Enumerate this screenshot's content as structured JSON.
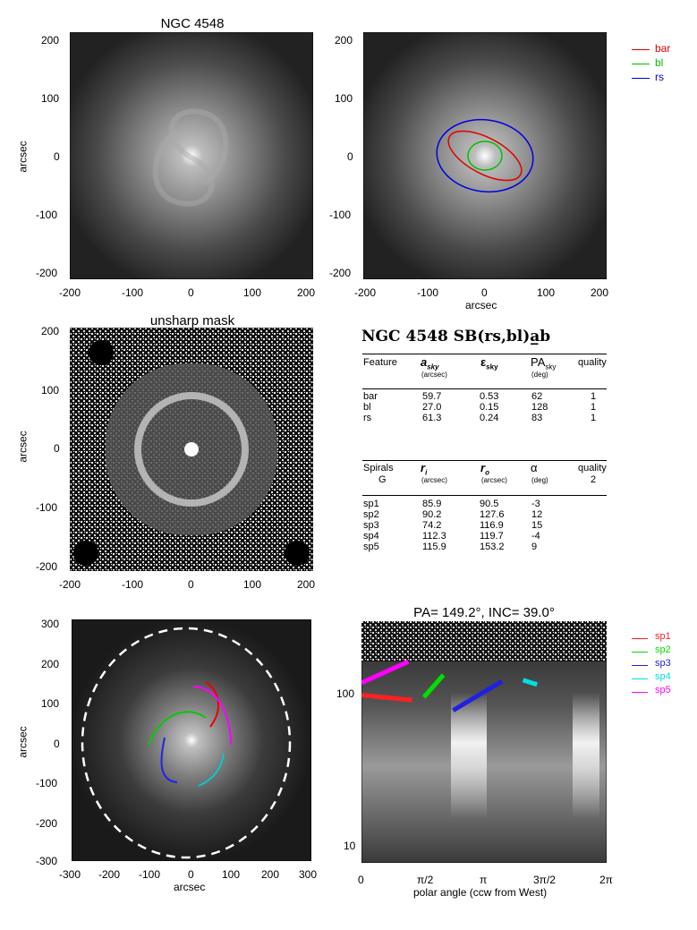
{
  "panels": {
    "p1": {
      "title": "NGC 4548",
      "ylabel": "arcsec",
      "xticks": [
        "-200",
        "-100",
        "0",
        "100",
        "200"
      ],
      "yticks": [
        "200",
        "100",
        "0",
        "-100",
        "-200"
      ]
    },
    "p2": {
      "xlabel": "arcsec",
      "xticks": [
        "-200",
        "-100",
        "0",
        "100",
        "200"
      ],
      "yticks": [
        "200",
        "100",
        "0",
        "-100",
        "-200"
      ],
      "legend": [
        {
          "name": "bar",
          "color": "#e00000"
        },
        {
          "name": "bl",
          "color": "#00c000"
        },
        {
          "name": "rs",
          "color": "#0000e0"
        }
      ]
    },
    "p3": {
      "title": "unsharp mask",
      "ylabel": "arcsec",
      "xticks": [
        "-200",
        "-100",
        "0",
        "100",
        "200"
      ],
      "yticks": [
        "200",
        "100",
        "0",
        "-100",
        "-200"
      ]
    },
    "p5": {
      "ylabel": "arcsec",
      "xlabel": "arcsec",
      "xticks": [
        "-300",
        "-200",
        "-100",
        "0",
        "100",
        "200",
        "300"
      ],
      "yticks": [
        "300",
        "200",
        "100",
        "0",
        "-100",
        "-200",
        "-300"
      ]
    },
    "p6": {
      "title": "PA= 149.2°, INC= 39.0°",
      "xlabel": "polar angle (ccw from West)",
      "xticks": [
        "0",
        "π/2",
        "π",
        "3π/2",
        "2π"
      ],
      "yticks": [
        "100",
        "10"
      ],
      "legend": [
        {
          "name": "sp1",
          "color": "#ff2020"
        },
        {
          "name": "sp2",
          "color": "#00e000"
        },
        {
          "name": "sp3",
          "color": "#2020e0"
        },
        {
          "name": "sp4",
          "color": "#00e0e0"
        },
        {
          "name": "sp5",
          "color": "#ff00ff"
        }
      ]
    }
  },
  "table": {
    "title": "NGC 4548  SB(rs,bl)a̲b",
    "head1": [
      "Feature",
      "a",
      "sky",
      "ε",
      "sky",
      "PA",
      "sky",
      "quality"
    ],
    "units1": [
      "(arcsec)",
      "(deg)"
    ],
    "features": [
      {
        "name": "bar",
        "a": "59.7",
        "e": "0.53",
        "pa": "62",
        "q": "1"
      },
      {
        "name": "bl",
        "a": "27.0",
        "e": "0.15",
        "pa": "128",
        "q": "1"
      },
      {
        "name": "rs",
        "a": "61.3",
        "e": "0.24",
        "pa": "83",
        "q": "1"
      }
    ],
    "head2": {
      "spirals": "Spirals",
      "g": "G",
      "ri": "r",
      "ri_sub": "i",
      "ro": "r",
      "ro_sub": "o",
      "alpha": "α",
      "quality": "quality",
      "quality_val": "2",
      "u_ri": "(arcsec)",
      "u_ro": "(arcsec)",
      "u_alpha": "(deg)"
    },
    "spirals": [
      {
        "name": "sp1",
        "ri": "85.9",
        "ro": "90.5",
        "alpha": "-3"
      },
      {
        "name": "sp2",
        "ri": "90.2",
        "ro": "127.6",
        "alpha": "12"
      },
      {
        "name": "sp3",
        "ri": "74.2",
        "ro": "116.9",
        "alpha": "15"
      },
      {
        "name": "sp4",
        "ri": "112.3",
        "ro": "119.7",
        "alpha": "-4"
      },
      {
        "name": "sp5",
        "ri": "115.9",
        "ro": "153.2",
        "alpha": "9"
      }
    ]
  },
  "chart_data": [
    {
      "type": "scatter",
      "title": "PA= 149.2°, INC= 39.0°",
      "xlabel": "polar angle (ccw from West)",
      "xlim": [
        0,
        6.283
      ],
      "ylim": [
        7,
        300
      ],
      "yscale": "log",
      "series": [
        {
          "name": "sp1",
          "x": [
            0.0,
            1.3
          ],
          "y": [
            95,
            88
          ]
        },
        {
          "name": "sp2",
          "x": [
            1.6,
            2.1
          ],
          "y": [
            92,
            130
          ]
        },
        {
          "name": "sp3",
          "x": [
            2.35,
            3.6
          ],
          "y": [
            75,
            118
          ]
        },
        {
          "name": "sp4",
          "x": [
            4.14,
            4.5
          ],
          "y": [
            120,
            112
          ]
        },
        {
          "name": "sp5",
          "x": [
            0.0,
            1.2
          ],
          "y": [
            115,
            160
          ]
        }
      ]
    }
  ]
}
